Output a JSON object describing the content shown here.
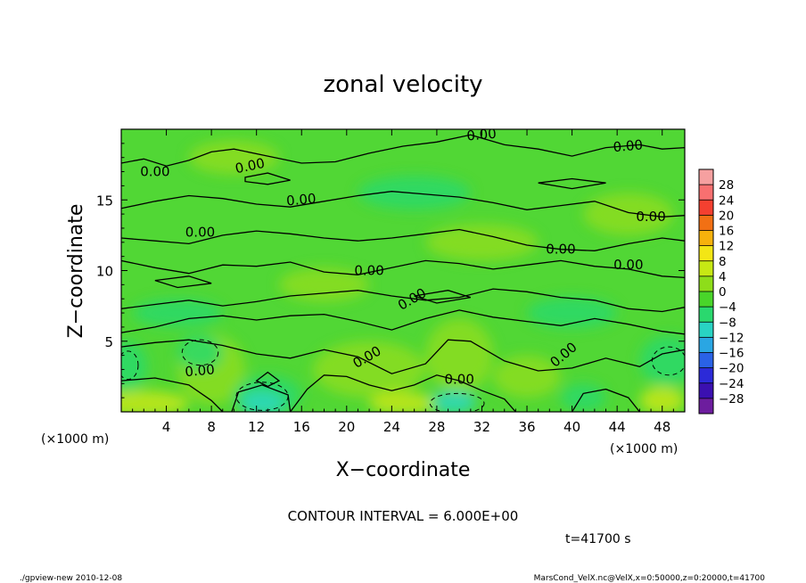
{
  "chart_data": {
    "type": "heatmap",
    "title": "zonal velocity",
    "xlabel": "X−coordinate",
    "ylabel": "Z−coordinate",
    "x_unit_left": "(×1000 m)",
    "x_unit_right": "(×1000 m)",
    "xlim": [
      0,
      50
    ],
    "ylim": [
      0,
      20
    ],
    "x_ticks": [
      "4",
      "8",
      "12",
      "16",
      "20",
      "24",
      "28",
      "32",
      "36",
      "40",
      "44",
      "48"
    ],
    "x_tick_values": [
      4,
      8,
      12,
      16,
      20,
      24,
      28,
      32,
      36,
      40,
      44,
      48
    ],
    "y_ticks": [
      "5",
      "10",
      "15"
    ],
    "y_tick_values": [
      5,
      10,
      15
    ],
    "contour_interval_text": "CONTOUR INTERVAL = 6.000E+00",
    "contour_label": "0.00",
    "contour_label_positions": [
      [
        3,
        16.7
      ],
      [
        11.5,
        17.1
      ],
      [
        32,
        19.3
      ],
      [
        45,
        18.5
      ],
      [
        16,
        14.7
      ],
      [
        7,
        12.4
      ],
      [
        47,
        13.5
      ],
      [
        39,
        11.2
      ],
      [
        22,
        9.7
      ],
      [
        45,
        10.1
      ],
      [
        26,
        7.7
      ],
      [
        7,
        2.6
      ],
      [
        22,
        3.6
      ],
      [
        30,
        2.0
      ],
      [
        39.5,
        3.8
      ]
    ],
    "contour_label_angles": [
      0,
      -12,
      -5,
      -5,
      -5,
      0,
      0,
      0,
      0,
      0,
      -30,
      -5,
      -30,
      0,
      -40
    ],
    "time_label": "t=41700 s",
    "footer_left": "./gpview-new  2010-12-08",
    "footer_right": "MarsCond_VelX.nc@VelX,x=0:50000,z=0:20000,t=41700",
    "colorbar": {
      "labels": [
        "28",
        "24",
        "20",
        "16",
        "12",
        "8",
        "4",
        "0",
        "−4",
        "−8",
        "−12",
        "−16",
        "−20",
        "−24",
        "−28"
      ],
      "colors": [
        "#f6a0a0",
        "#f87070",
        "#f44030",
        "#f27014",
        "#f7b20c",
        "#f3e615",
        "#c7e814",
        "#8edd1a",
        "#49d52a",
        "#2ad86e",
        "#29d3c3",
        "#2aa6e3",
        "#2a62e6",
        "#2c2ad8",
        "#3b10b0",
        "#6d1d9e"
      ]
    },
    "field_colors": {
      "base": "#51d735",
      "positive": "#8cdd1e",
      "strong_positive": "#c7e814",
      "negative": "#2ad96a",
      "strong_negative": "#2bd8c0"
    }
  }
}
